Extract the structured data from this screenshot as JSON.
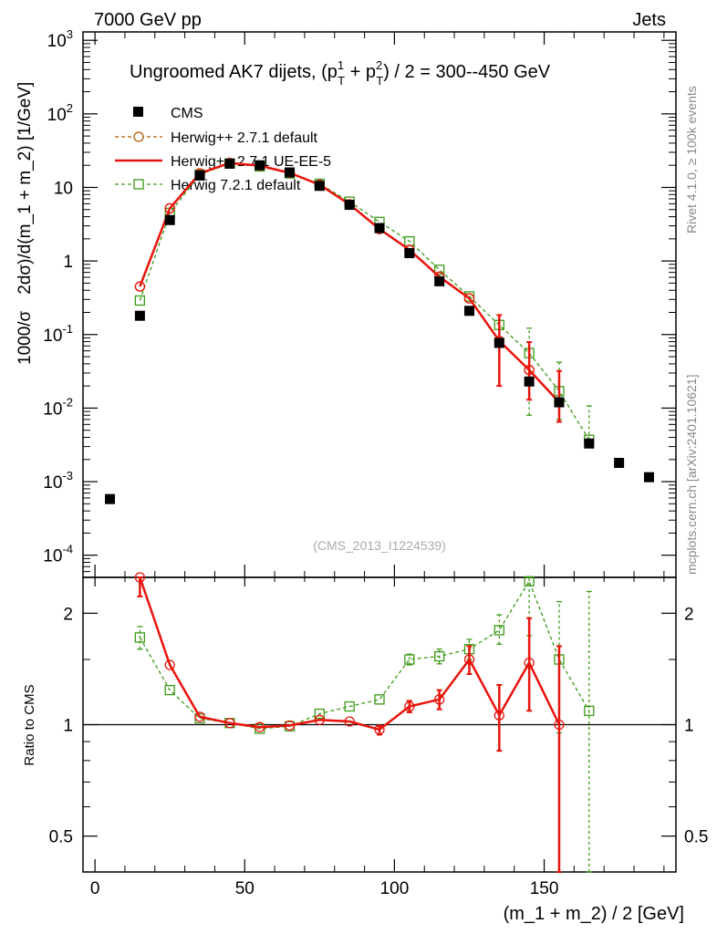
{
  "header": {
    "left_label": "7000 GeV pp",
    "right_label": "Jets"
  },
  "side_labels": {
    "rivet": "Rivet 4.1.0, ≥ 100k events",
    "source": "mcplots.cern.ch [arXiv:2401.10621]"
  },
  "chart_data": [
    {
      "type": "line",
      "panel": "main",
      "title_prefix": "Ungroomed AK7 dijets, (p",
      "title_sup1": "1",
      "title_sub1": "T",
      "title_mid": " + p",
      "title_sup2": "2",
      "title_sub2": "T",
      "title_suffix": ") / 2 = 300--450 GeV",
      "ylabel_part1": "1000/σ",
      "ylabel_part2": "2dσ)/d(m_1 + m_2) [1/GeV]",
      "watermark": "(CMS_2013_I1224539)",
      "yscale": "log",
      "ylim": [
        5e-05,
        1300
      ],
      "xlim": [
        -4,
        194
      ],
      "ytick_labels": [
        {
          "base": "10",
          "exp": "-4"
        },
        {
          "base": "10",
          "exp": "-3"
        },
        {
          "base": "10",
          "exp": "-2"
        },
        {
          "base": "10",
          "exp": "-1"
        },
        {
          "base": "1",
          "exp": ""
        },
        {
          "base": "10",
          "exp": ""
        },
        {
          "base": "10",
          "exp": "2"
        },
        {
          "base": "10",
          "exp": "3"
        }
      ],
      "ytick_values": [
        0.0001,
        0.001,
        0.01,
        0.1,
        1,
        10,
        100,
        1000
      ],
      "legend_location": "top-left",
      "series": [
        {
          "name": "CMS",
          "style": "data",
          "color": "#000000",
          "x": [
            5,
            15,
            25,
            35,
            45,
            55,
            65,
            75,
            85,
            95,
            105,
            115,
            125,
            135,
            145,
            155,
            165,
            175,
            185
          ],
          "y": [
            0.00058,
            0.18,
            3.6,
            14.5,
            21,
            20,
            16,
            10.5,
            5.8,
            2.8,
            1.28,
            0.53,
            0.21,
            0.077,
            0.023,
            0.012,
            0.0033,
            0.0018,
            0.00115
          ]
        },
        {
          "name": "Herwig++ 2.7.1 default",
          "style": "dashed-circle",
          "color": "#b35900",
          "x": [
            15,
            25,
            35,
            45,
            55,
            65,
            75,
            85,
            95,
            105,
            115,
            125,
            135,
            145,
            155
          ],
          "y": [
            0.45,
            5.2,
            15.5,
            21.5,
            19.8,
            15.8,
            10.9,
            5.9,
            2.72,
            1.42,
            0.61,
            0.31,
            0.082,
            0.033,
            0.012
          ]
        },
        {
          "name": "Herwig++ 2.7.1 UE-EE-5",
          "style": "solid-circle",
          "color": "#e8140c",
          "x": [
            15,
            25,
            35,
            45,
            55,
            65,
            75,
            85,
            95,
            105,
            115,
            125,
            135,
            145,
            155
          ],
          "y": [
            0.45,
            5.2,
            15.5,
            21.5,
            19.8,
            15.8,
            10.9,
            5.9,
            2.72,
            1.42,
            0.61,
            0.31,
            0.082,
            0.033,
            0.012
          ],
          "yerr_low": [
            0,
            0,
            0,
            0,
            0,
            0,
            0,
            0,
            0,
            0,
            0,
            0,
            0.062,
            0.02,
            0.0055
          ],
          "yerr_high": [
            0,
            0,
            0,
            0,
            0,
            0,
            0,
            0,
            0,
            0,
            0,
            0,
            0.102,
            0.046,
            0.02
          ]
        },
        {
          "name": "Herwig 7.2.1 default",
          "style": "dashed-square",
          "color": "#3d9a17",
          "x": [
            15,
            25,
            35,
            45,
            55,
            65,
            75,
            85,
            95,
            105,
            115,
            125,
            135,
            145,
            155,
            165
          ],
          "y": [
            0.29,
            4.5,
            15.0,
            21.2,
            19.3,
            15.5,
            11.2,
            6.4,
            3.4,
            1.85,
            0.76,
            0.33,
            0.135,
            0.056,
            0.017,
            0.0037
          ],
          "yerr_low": [
            0,
            0,
            0,
            0,
            0,
            0,
            0,
            0,
            0,
            0,
            0,
            0,
            0,
            0.048,
            0.01,
            1e-05
          ],
          "yerr_high": [
            0,
            0,
            0,
            0,
            0,
            0,
            0,
            0,
            0,
            0,
            0,
            0,
            0,
            0.066,
            0.025,
            0.007
          ]
        }
      ]
    },
    {
      "type": "line",
      "panel": "ratio",
      "ylabel": "Ratio to CMS",
      "xlabel": "(m_1 + m_2) / 2 [GeV]",
      "yscale": "log",
      "ylim": [
        0.4,
        2.5
      ],
      "xlim": [
        -4,
        194
      ],
      "ytick_values": [
        0.5,
        1,
        2
      ],
      "ytick_labels": [
        "0.5",
        "1",
        "2"
      ],
      "xtick_values": [
        0,
        50,
        100,
        150
      ],
      "xtick_labels": [
        "0",
        "50",
        "100",
        "150"
      ],
      "reference": 1,
      "series": [
        {
          "name": "Herwig++ 2.7.1 UE-EE-5",
          "color": "#e8140c",
          "style": "solid-circle",
          "x": [
            15,
            25,
            35,
            45,
            55,
            65,
            75,
            85,
            95,
            105,
            115,
            125,
            135,
            145,
            155
          ],
          "y": [
            2.5,
            1.45,
            1.05,
            1.01,
            0.985,
            0.995,
            1.03,
            1.02,
            0.97,
            1.12,
            1.17,
            1.5,
            1.06,
            1.47,
            1.0
          ],
          "yerr_low": [
            0.28,
            0,
            0,
            0,
            0,
            0,
            0,
            0,
            0.03,
            0.04,
            0.07,
            0.13,
            0.21,
            0.38,
            0.62
          ],
          "yerr_high": [
            0.2,
            0,
            0,
            0,
            0,
            0,
            0,
            0,
            0.02,
            0.04,
            0.07,
            0.13,
            0.22,
            0.47,
            0.63
          ]
        },
        {
          "name": "Herwig 7.2.1 default",
          "color": "#3d9a17",
          "style": "dashed-square",
          "x": [
            15,
            25,
            35,
            45,
            55,
            65,
            75,
            85,
            95,
            105,
            115,
            125,
            135,
            145,
            155,
            165
          ],
          "y": [
            1.72,
            1.24,
            1.04,
            1.01,
            0.975,
            0.99,
            1.07,
            1.12,
            1.17,
            1.5,
            1.53,
            1.6,
            1.8,
            2.44,
            1.5,
            1.09
          ],
          "yerr_low": [
            0.12,
            0,
            0,
            0,
            0,
            0,
            0,
            0,
            0,
            0.05,
            0.07,
            0.1,
            0.15,
            0.7,
            0.55,
            0.8
          ],
          "yerr_high": [
            0.12,
            0,
            0,
            0,
            0,
            0,
            0,
            0,
            0,
            0.05,
            0.07,
            0.1,
            0.18,
            0.3,
            0.65,
            1.2
          ]
        }
      ]
    }
  ]
}
